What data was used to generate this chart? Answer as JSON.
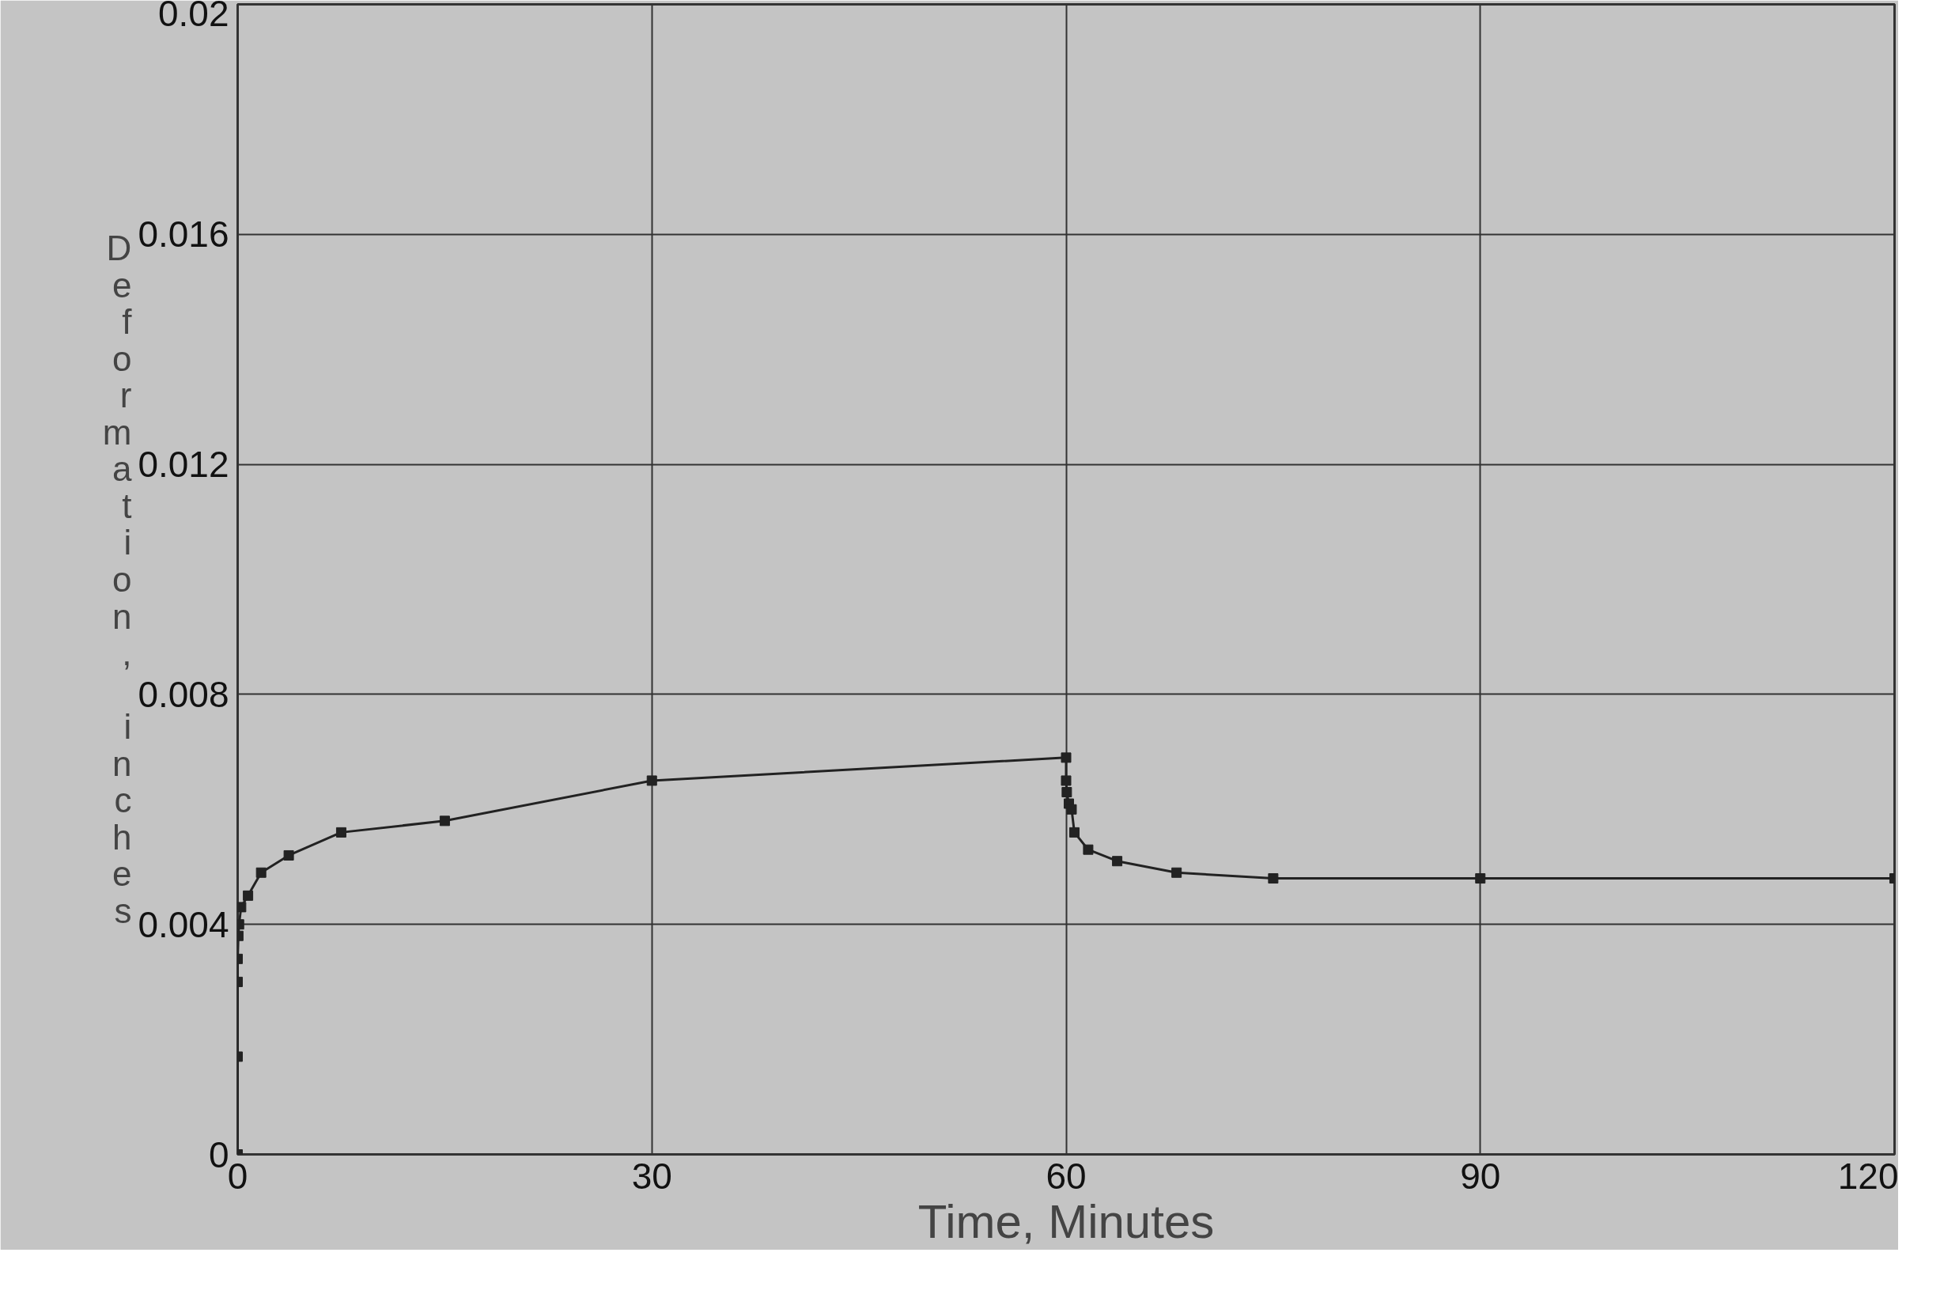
{
  "chart_data": {
    "type": "line",
    "xlabel": "Time, Minutes",
    "ylabel": "Deformation, inches",
    "x": [
      0,
      0,
      0,
      0,
      0.05,
      0.1,
      0.25,
      0.75,
      1.7,
      3.7,
      7.5,
      15,
      30,
      60,
      60,
      60.05,
      60.2,
      60.4,
      60.6,
      61.6,
      63.7,
      68,
      75,
      90,
      120
    ],
    "series": [
      {
        "color": "#222222",
        "values": [
          0,
          0.0017,
          0.003,
          0.0034,
          0.0038,
          0.004,
          0.0043,
          0.0045,
          0.0049,
          0.0052,
          0.0056,
          0.0058,
          0.0065,
          0.0069,
          0.0065,
          0.0063,
          0.0061,
          0.006,
          0.0056,
          0.0053,
          0.0051,
          0.0049,
          0.0048,
          0.0048,
          0.0048
        ]
      }
    ],
    "xlim": [
      0,
      120
    ],
    "xticks": [
      0,
      30,
      60,
      90,
      120
    ],
    "ylim": [
      0,
      0.02
    ],
    "yticks": [
      0,
      0.004,
      0.008,
      0.012,
      0.016,
      0.02
    ],
    "grid": true,
    "marker": "square",
    "line_style": "solid"
  }
}
